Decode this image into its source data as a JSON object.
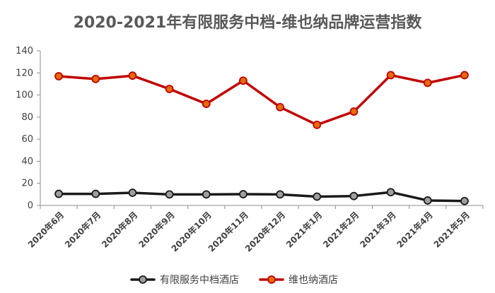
{
  "chart_data": {
    "type": "line",
    "title": "2020-2021年有限服务中档-维也纳品牌运营指数",
    "categories": [
      "2020年6月",
      "2020年7月",
      "2020年8月",
      "2020年9月",
      "2020年10月",
      "2020年11月",
      "2020年12月",
      "2021年1月",
      "2021年2月",
      "2021年3月",
      "2021年4月",
      "2021年5月"
    ],
    "ylim": [
      0,
      140
    ],
    "yticks": [
      0,
      20,
      40,
      60,
      80,
      100,
      120,
      140
    ],
    "grid": false,
    "legend_position": "bottom",
    "series": [
      {
        "name": "有限服务中档酒店",
        "color": "#1a1a1a",
        "marker_fill": "#9e9e9e",
        "values": [
          10.5,
          10.5,
          11.5,
          10,
          10,
          10.2,
          10,
          8,
          8.5,
          12,
          4.5,
          4
        ]
      },
      {
        "name": "维也纳酒店",
        "color": "#c00000",
        "marker_fill": "#e46c0a",
        "values": [
          117,
          114.5,
          117.5,
          105.5,
          92,
          113,
          89,
          73,
          85,
          118,
          111,
          118
        ]
      }
    ]
  }
}
